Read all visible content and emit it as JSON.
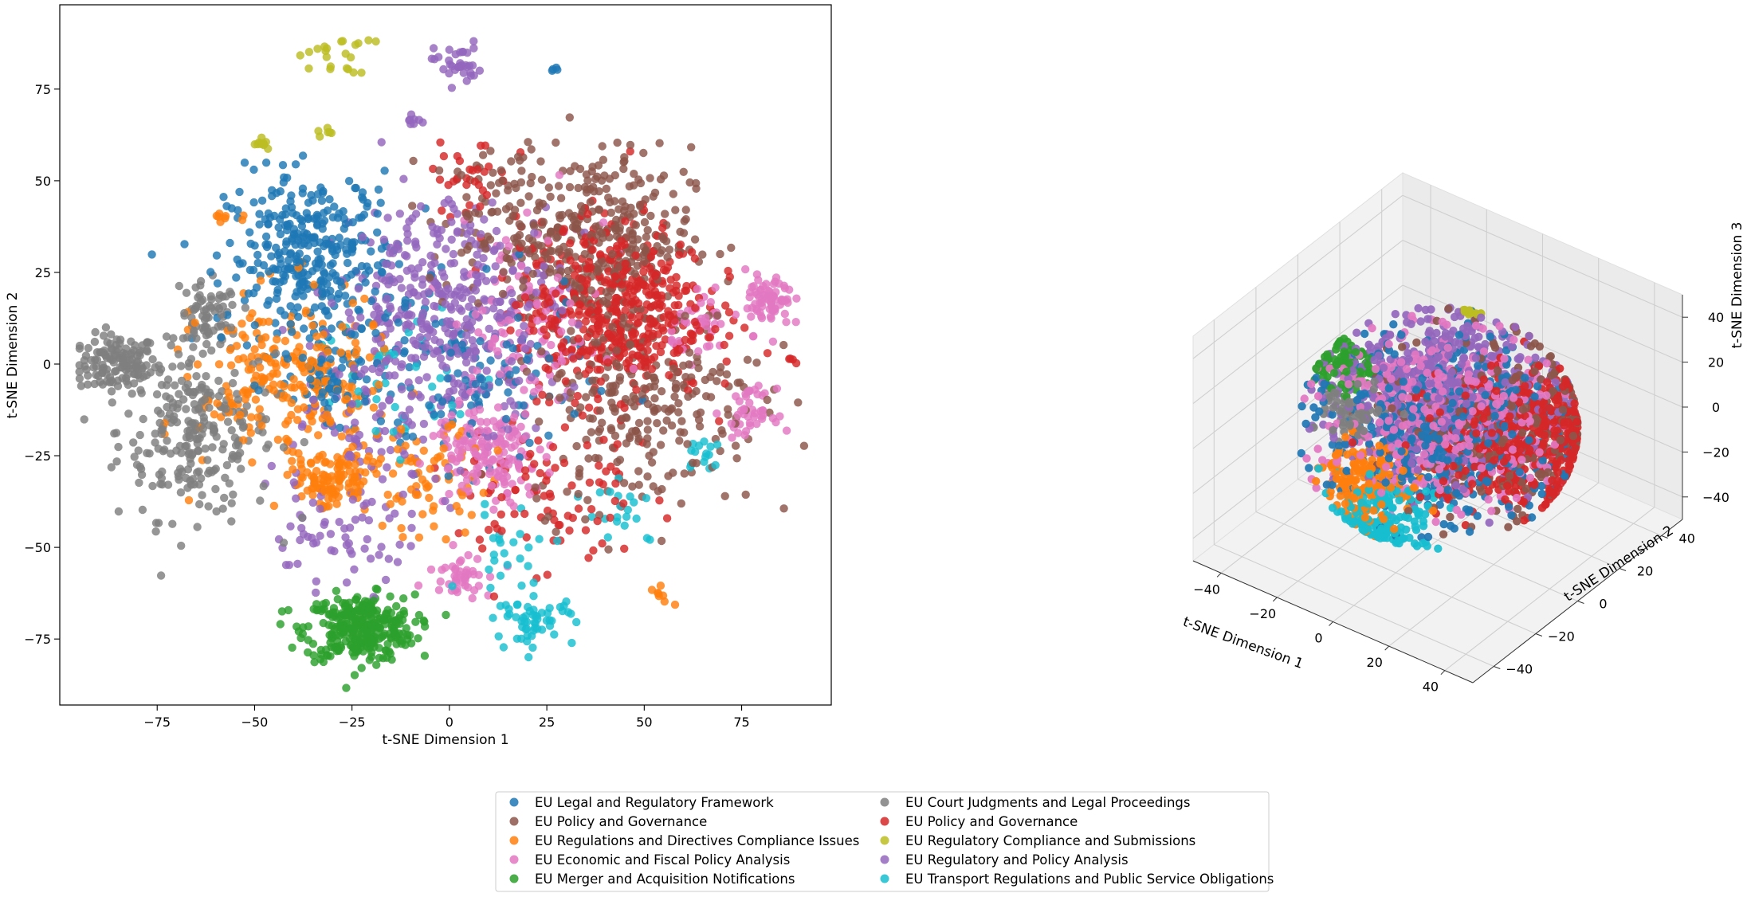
{
  "categories": [
    {
      "name": "EU Legal and Regulatory Framework",
      "color": "#1f77b4"
    },
    {
      "name": "EU Policy and Governance",
      "color": "#8c564b"
    },
    {
      "name": "EU Regulations and Directives Compliance Issues",
      "color": "#ff7f0e"
    },
    {
      "name": "EU Economic and Fiscal Policy Analysis",
      "color": "#e377c2"
    },
    {
      "name": "EU Merger and Acquisition Notifications",
      "color": "#2ca02c"
    },
    {
      "name": "EU Court Judgments and Legal Proceedings",
      "color": "#7f7f7f"
    },
    {
      "name": "EU Policy and Governance",
      "color": "#d62728"
    },
    {
      "name": "EU Regulatory Compliance and Submissions",
      "color": "#bcbd22"
    },
    {
      "name": "EU Regulatory and Policy Analysis",
      "color": "#9467bd"
    },
    {
      "name": "EU Transport Regulations and Public Service Obligations",
      "color": "#17becf"
    }
  ],
  "chart_data": [
    {
      "type": "scatter",
      "title": "",
      "xlabel": "t-SNE Dimension 1",
      "ylabel": "t-SNE Dimension 2",
      "xlim": [
        -100,
        98
      ],
      "ylim": [
        -93,
        98
      ],
      "xticks": [
        "−75",
        "−50",
        "−25",
        "0",
        "25",
        "50",
        "75"
      ],
      "xtick_values": [
        -75,
        -50,
        -25,
        0,
        25,
        50,
        75
      ],
      "yticks": [
        "−75",
        "−50",
        "−25",
        "0",
        "25",
        "50",
        "75"
      ],
      "ytick_values": [
        -75,
        -50,
        -25,
        0,
        25,
        50,
        75
      ],
      "grid": false,
      "series_clusters": [
        {
          "cat": 5,
          "cx": -85,
          "cy": 0,
          "sx": 5,
          "sy": 4,
          "n": 130
        },
        {
          "cat": 5,
          "cx": -65,
          "cy": -18,
          "sx": 10,
          "sy": 12,
          "n": 260
        },
        {
          "cat": 5,
          "cx": -62,
          "cy": 12,
          "sx": 4,
          "sy": 5,
          "n": 70
        },
        {
          "cat": 4,
          "cx": -23,
          "cy": -72,
          "sx": 7,
          "sy": 4.5,
          "n": 320
        },
        {
          "cat": 7,
          "cx": -30,
          "cy": 85,
          "sx": 5,
          "sy": 3,
          "n": 22
        },
        {
          "cat": 7,
          "cx": -48,
          "cy": 60,
          "sx": 1,
          "sy": 1,
          "n": 10
        },
        {
          "cat": 7,
          "cx": -32,
          "cy": 63,
          "sx": 1,
          "sy": 1,
          "n": 6
        },
        {
          "cat": 8,
          "cx": 2,
          "cy": 82,
          "sx": 3,
          "sy": 3,
          "n": 35
        },
        {
          "cat": 0,
          "cx": 27,
          "cy": 80,
          "sx": 0.5,
          "sy": 0.4,
          "n": 4
        },
        {
          "cat": 0,
          "cx": -35,
          "cy": 28,
          "sx": 11,
          "sy": 12,
          "n": 360
        },
        {
          "cat": 0,
          "cx": -30,
          "cy": -5,
          "sx": 5,
          "sy": 5,
          "n": 60
        },
        {
          "cat": 0,
          "cx": 5,
          "cy": -5,
          "sx": 15,
          "sy": 12,
          "n": 120
        },
        {
          "cat": 1,
          "cx": 38,
          "cy": 35,
          "sx": 12,
          "sy": 12,
          "n": 320
        },
        {
          "cat": 1,
          "cx": 50,
          "cy": -10,
          "sx": 15,
          "sy": 15,
          "n": 260
        },
        {
          "cat": 1,
          "cx": 15,
          "cy": 40,
          "sx": 10,
          "sy": 10,
          "n": 90
        },
        {
          "cat": 6,
          "cx": 42,
          "cy": 15,
          "sx": 12,
          "sy": 12,
          "n": 520
        },
        {
          "cat": 6,
          "cx": 88,
          "cy": 1,
          "sx": 1,
          "sy": 0.5,
          "n": 4
        },
        {
          "cat": 6,
          "cx": 25,
          "cy": -35,
          "sx": 12,
          "sy": 12,
          "n": 90
        },
        {
          "cat": 6,
          "cx": 5,
          "cy": 50,
          "sx": 5,
          "sy": 5,
          "n": 30
        },
        {
          "cat": 3,
          "cx": 82,
          "cy": 17,
          "sx": 3,
          "sy": 4,
          "n": 75
        },
        {
          "cat": 3,
          "cx": 65,
          "cy": 10,
          "sx": 4,
          "sy": 4,
          "n": 40
        },
        {
          "cat": 3,
          "cx": 10,
          "cy": -25,
          "sx": 7,
          "sy": 7,
          "n": 160
        },
        {
          "cat": 3,
          "cx": 3,
          "cy": -57,
          "sx": 4,
          "sy": 3,
          "n": 45
        },
        {
          "cat": 3,
          "cx": 77,
          "cy": -13,
          "sx": 3,
          "sy": 3,
          "n": 45
        },
        {
          "cat": 3,
          "cx": 20,
          "cy": 10,
          "sx": 10,
          "sy": 15,
          "n": 110
        },
        {
          "cat": 2,
          "cx": -30,
          "cy": -32,
          "sx": 5,
          "sy": 4,
          "n": 110
        },
        {
          "cat": 2,
          "cx": -40,
          "cy": -5,
          "sx": 12,
          "sy": 12,
          "n": 260
        },
        {
          "cat": 2,
          "cx": -58,
          "cy": 40,
          "sx": 2,
          "sy": 1,
          "n": 8
        },
        {
          "cat": 2,
          "cx": -5,
          "cy": -32,
          "sx": 8,
          "sy": 7,
          "n": 70
        },
        {
          "cat": 2,
          "cx": 55,
          "cy": -62,
          "sx": 3,
          "sy": 2,
          "n": 8
        },
        {
          "cat": 8,
          "cx": 0,
          "cy": 15,
          "sx": 14,
          "sy": 15,
          "n": 420
        },
        {
          "cat": 8,
          "cx": -25,
          "cy": -25,
          "sx": 12,
          "sy": 12,
          "n": 90
        },
        {
          "cat": 8,
          "cx": -30,
          "cy": -48,
          "sx": 10,
          "sy": 6,
          "n": 50
        },
        {
          "cat": 8,
          "cx": -10,
          "cy": 66,
          "sx": 2,
          "sy": 1,
          "n": 8
        },
        {
          "cat": 9,
          "cx": 22,
          "cy": -70,
          "sx": 5,
          "sy": 3,
          "n": 55
        },
        {
          "cat": 9,
          "cx": 45,
          "cy": -40,
          "sx": 5,
          "sy": 5,
          "n": 20
        },
        {
          "cat": 9,
          "cx": 15,
          "cy": -50,
          "sx": 6,
          "sy": 6,
          "n": 25
        },
        {
          "cat": 9,
          "cx": 65,
          "cy": -25,
          "sx": 3,
          "sy": 3,
          "n": 15
        },
        {
          "cat": 9,
          "cx": -10,
          "cy": -5,
          "sx": 12,
          "sy": 12,
          "n": 40
        }
      ]
    },
    {
      "type": "scatter",
      "title": "",
      "xlabel": "t-SNE Dimension 1",
      "ylabel": "t-SNE Dimension 2",
      "zlabel": "t-SNE Dimension 3",
      "xlim": [
        -50,
        50
      ],
      "ylim": [
        -50,
        50
      ],
      "zlim": [
        -50,
        50
      ],
      "xticks": [
        "−40",
        "−20",
        "0",
        "20",
        "40"
      ],
      "yticks": [
        "−40",
        "−20",
        "0",
        "20",
        "40"
      ],
      "zticks": [
        "−40",
        "−20",
        "0",
        "20",
        "40"
      ],
      "tick_values": [
        -40,
        -20,
        0,
        20,
        40
      ],
      "grid": true,
      "series_clusters": [
        {
          "cat": 0,
          "cx": 0,
          "cy": 0,
          "cz": 0,
          "r": 30,
          "n": 500
        },
        {
          "cat": 1,
          "cx": 15,
          "cy": 10,
          "cz": 0,
          "r": 30,
          "n": 280
        },
        {
          "cat": 6,
          "cx": 20,
          "cy": 15,
          "cz": -5,
          "r": 24,
          "n": 450
        },
        {
          "cat": 8,
          "cx": 0,
          "cy": 0,
          "cz": 15,
          "r": 28,
          "n": 650
        },
        {
          "cat": 3,
          "cx": -5,
          "cy": 10,
          "cz": -5,
          "r": 32,
          "n": 380
        },
        {
          "cat": 2,
          "cx": -15,
          "cy": -15,
          "cz": -20,
          "r": 14,
          "n": 160
        },
        {
          "cat": 9,
          "cx": -5,
          "cy": -20,
          "cz": -28,
          "r": 14,
          "n": 160
        },
        {
          "cat": 4,
          "cx": -30,
          "cy": -5,
          "cz": 15,
          "r": 9,
          "n": 90
        },
        {
          "cat": 5,
          "cx": -30,
          "cy": 0,
          "cz": -10,
          "r": 10,
          "n": 60
        },
        {
          "cat": 7,
          "cx": -5,
          "cy": 25,
          "cz": 38,
          "r": 4,
          "n": 15
        }
      ]
    }
  ]
}
